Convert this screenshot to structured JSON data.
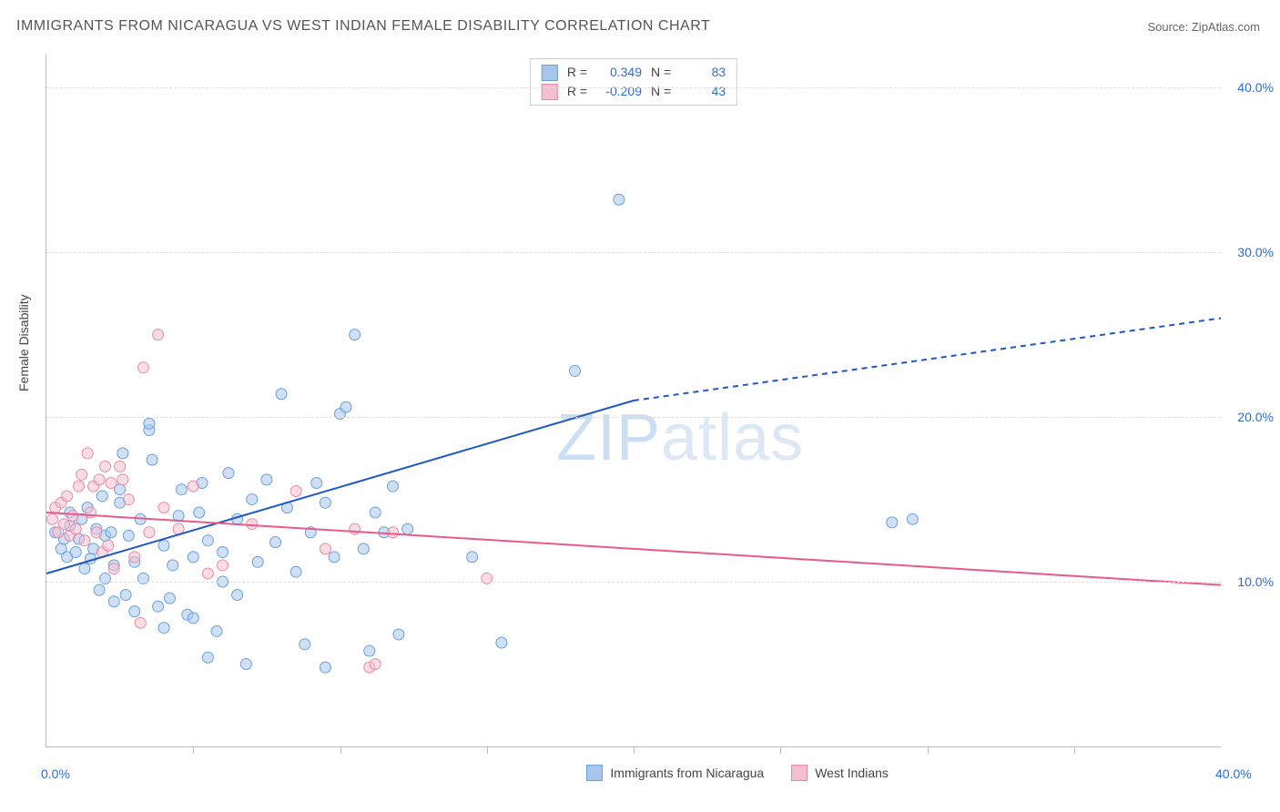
{
  "title": "IMMIGRANTS FROM NICARAGUA VS WEST INDIAN FEMALE DISABILITY CORRELATION CHART",
  "source": "Source: ZipAtlas.com",
  "y_axis_title": "Female Disability",
  "watermark_bold": "ZIP",
  "watermark_thin": "atlas",
  "chart": {
    "type": "scatter",
    "xlim": [
      0,
      40
    ],
    "ylim": [
      0,
      42
    ],
    "x_ticks": [
      0,
      40
    ],
    "x_tick_labels": [
      "0.0%",
      "40.0%"
    ],
    "y_ticks": [
      10,
      20,
      30,
      40
    ],
    "y_tick_labels": [
      "10.0%",
      "20.0%",
      "30.0%",
      "40.0%"
    ],
    "minor_x_ticks": [
      5,
      10,
      15,
      20,
      25,
      30,
      35
    ],
    "background_color": "#ffffff",
    "grid_color": "#dddddd",
    "grid_dash": "4,4",
    "axis_color": "#bbbbbb",
    "marker_radius": 6,
    "marker_opacity": 0.55,
    "marker_stroke_width": 1,
    "series": [
      {
        "name": "Immigrants from Nicaragua",
        "color_fill": "#a8c6ec",
        "color_stroke": "#6a9fd9",
        "r_value": "0.349",
        "n_value": "83",
        "trend": {
          "x1": 0,
          "y1": 10.5,
          "x2": 20,
          "y2": 21,
          "dash_x2": 40,
          "dash_y2": 26,
          "color": "#1d57c9",
          "width": 2
        },
        "points": [
          [
            0.3,
            13.0
          ],
          [
            0.5,
            12.0
          ],
          [
            0.6,
            12.6
          ],
          [
            0.7,
            11.5
          ],
          [
            0.8,
            13.4
          ],
          [
            0.8,
            14.2
          ],
          [
            1.0,
            11.8
          ],
          [
            1.1,
            12.6
          ],
          [
            1.2,
            13.8
          ],
          [
            1.3,
            10.8
          ],
          [
            1.4,
            14.5
          ],
          [
            1.5,
            11.4
          ],
          [
            1.6,
            12.0
          ],
          [
            1.7,
            13.2
          ],
          [
            1.8,
            9.5
          ],
          [
            1.9,
            15.2
          ],
          [
            2.0,
            12.8
          ],
          [
            2.0,
            10.2
          ],
          [
            2.2,
            13.0
          ],
          [
            2.3,
            8.8
          ],
          [
            2.3,
            11.0
          ],
          [
            2.5,
            14.8
          ],
          [
            2.5,
            15.6
          ],
          [
            2.6,
            17.8
          ],
          [
            2.7,
            9.2
          ],
          [
            2.8,
            12.8
          ],
          [
            3.0,
            11.2
          ],
          [
            3.0,
            8.2
          ],
          [
            3.2,
            13.8
          ],
          [
            3.3,
            10.2
          ],
          [
            3.5,
            19.2
          ],
          [
            3.5,
            19.6
          ],
          [
            3.6,
            17.4
          ],
          [
            3.8,
            8.5
          ],
          [
            4.0,
            12.2
          ],
          [
            4.0,
            7.2
          ],
          [
            4.2,
            9.0
          ],
          [
            4.3,
            11.0
          ],
          [
            4.5,
            14.0
          ],
          [
            4.6,
            15.6
          ],
          [
            4.8,
            8.0
          ],
          [
            5.0,
            11.5
          ],
          [
            5.0,
            7.8
          ],
          [
            5.2,
            14.2
          ],
          [
            5.3,
            16.0
          ],
          [
            5.5,
            12.5
          ],
          [
            5.8,
            7.0
          ],
          [
            6.0,
            10.0
          ],
          [
            6.0,
            11.8
          ],
          [
            6.2,
            16.6
          ],
          [
            6.5,
            13.8
          ],
          [
            6.5,
            9.2
          ],
          [
            7.0,
            15.0
          ],
          [
            7.2,
            11.2
          ],
          [
            7.5,
            16.2
          ],
          [
            7.8,
            12.4
          ],
          [
            8.0,
            21.4
          ],
          [
            8.2,
            14.5
          ],
          [
            8.5,
            10.6
          ],
          [
            8.8,
            6.2
          ],
          [
            9.0,
            13.0
          ],
          [
            9.2,
            16.0
          ],
          [
            9.5,
            14.8
          ],
          [
            9.8,
            11.5
          ],
          [
            10.0,
            20.2
          ],
          [
            10.2,
            20.6
          ],
          [
            10.5,
            25.0
          ],
          [
            10.8,
            12.0
          ],
          [
            11.0,
            5.8
          ],
          [
            11.2,
            14.2
          ],
          [
            11.5,
            13.0
          ],
          [
            11.8,
            15.8
          ],
          [
            12.0,
            6.8
          ],
          [
            12.3,
            13.2
          ],
          [
            14.5,
            11.5
          ],
          [
            15.5,
            6.3
          ],
          [
            18.0,
            22.8
          ],
          [
            19.5,
            33.2
          ],
          [
            28.8,
            13.6
          ],
          [
            29.5,
            13.8
          ],
          [
            5.5,
            5.4
          ],
          [
            6.8,
            5.0
          ],
          [
            9.5,
            4.8
          ]
        ]
      },
      {
        "name": "West Indians",
        "color_fill": "#f5bfcf",
        "color_stroke": "#e88aa6",
        "r_value": "-0.209",
        "n_value": "43",
        "trend": {
          "x1": 0,
          "y1": 14.2,
          "x2": 40,
          "y2": 9.8,
          "color": "#e85a8a",
          "width": 2
        },
        "points": [
          [
            0.2,
            13.8
          ],
          [
            0.3,
            14.5
          ],
          [
            0.4,
            13.0
          ],
          [
            0.5,
            14.8
          ],
          [
            0.6,
            13.5
          ],
          [
            0.7,
            15.2
          ],
          [
            0.8,
            12.8
          ],
          [
            0.9,
            14.0
          ],
          [
            1.0,
            13.2
          ],
          [
            1.1,
            15.8
          ],
          [
            1.2,
            16.5
          ],
          [
            1.3,
            12.5
          ],
          [
            1.4,
            17.8
          ],
          [
            1.5,
            14.2
          ],
          [
            1.6,
            15.8
          ],
          [
            1.7,
            13.0
          ],
          [
            1.8,
            16.2
          ],
          [
            1.9,
            11.8
          ],
          [
            2.0,
            17.0
          ],
          [
            2.1,
            12.2
          ],
          [
            2.2,
            16.0
          ],
          [
            2.3,
            10.8
          ],
          [
            2.5,
            17.0
          ],
          [
            2.6,
            16.2
          ],
          [
            2.8,
            15.0
          ],
          [
            3.0,
            11.5
          ],
          [
            3.2,
            7.5
          ],
          [
            3.3,
            23.0
          ],
          [
            3.5,
            13.0
          ],
          [
            3.8,
            25.0
          ],
          [
            4.0,
            14.5
          ],
          [
            4.5,
            13.2
          ],
          [
            5.0,
            15.8
          ],
          [
            5.5,
            10.5
          ],
          [
            6.0,
            11.0
          ],
          [
            7.0,
            13.5
          ],
          [
            8.5,
            15.5
          ],
          [
            9.5,
            12.0
          ],
          [
            10.5,
            13.2
          ],
          [
            11.0,
            4.8
          ],
          [
            11.8,
            13.0
          ],
          [
            15.0,
            10.2
          ],
          [
            11.2,
            5.0
          ]
        ]
      }
    ],
    "legend_bottom": [
      {
        "label": "Immigrants from Nicaragua",
        "fill": "#a8c6ec",
        "stroke": "#6a9fd9"
      },
      {
        "label": "West Indians",
        "fill": "#f5bfcf",
        "stroke": "#e88aa6"
      }
    ],
    "stats_box": {
      "row1": {
        "swatch_fill": "#a8c6ec",
        "swatch_stroke": "#6a9fd9",
        "r_label": "R =",
        "r_val": "0.349",
        "n_label": "N =",
        "n_val": "83"
      },
      "row2": {
        "swatch_fill": "#f5bfcf",
        "swatch_stroke": "#e88aa6",
        "r_label": "R =",
        "r_val": "-0.209",
        "n_label": "N =",
        "n_val": "43"
      }
    }
  }
}
